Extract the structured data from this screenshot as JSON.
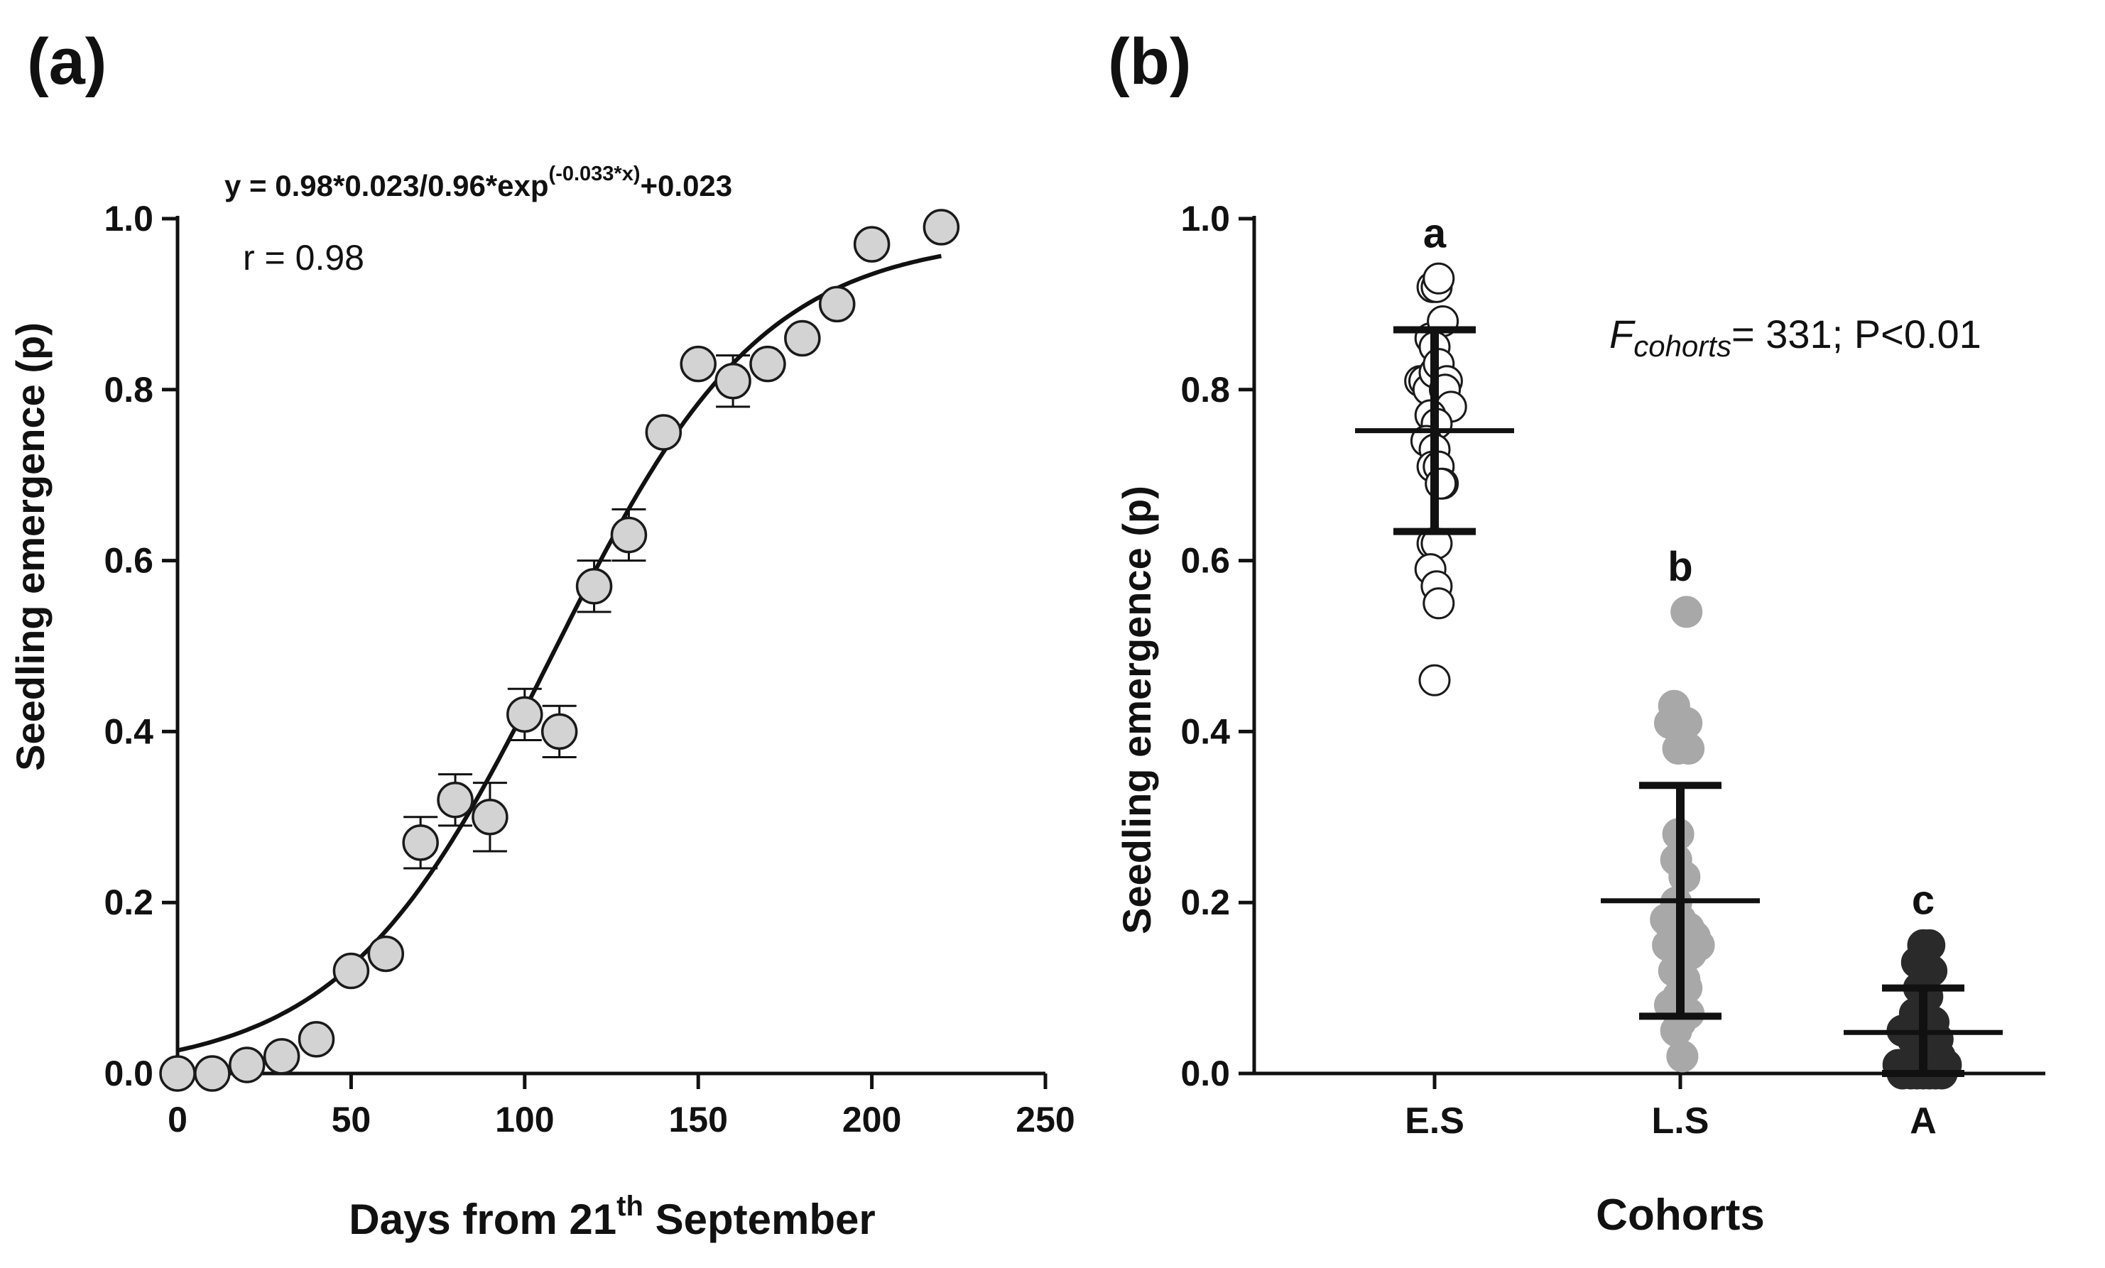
{
  "chart_data": [
    {
      "type": "scatter",
      "panel_label": "(a)",
      "title": "",
      "xlabel_main": "Days from 21",
      "xlabel_sup": "th",
      "xlabel_tail": " September",
      "ylabel": "Seedling emergence (p)",
      "xlim": [
        0,
        250
      ],
      "ylim": [
        0,
        1.0
      ],
      "xticks": [
        0,
        50,
        100,
        150,
        200,
        250
      ],
      "yticks": [
        0.0,
        0.2,
        0.4,
        0.6,
        0.8,
        1.0
      ],
      "xtick_labels": [
        "0",
        "50",
        "100",
        "150",
        "200",
        "250"
      ],
      "ytick_labels": [
        "0.0",
        "0.2",
        "0.4",
        "0.6",
        "0.8",
        "1.0"
      ],
      "equation_main": "y = 0.98*0.023/0.96*exp",
      "equation_sup": "(-0.033*x)",
      "equation_tail": "+0.023",
      "r_label": "r = 0.98",
      "grid": false,
      "points": [
        {
          "x": 0,
          "y": 0.0,
          "err": 0
        },
        {
          "x": 10,
          "y": 0.0,
          "err": 0
        },
        {
          "x": 20,
          "y": 0.01,
          "err": 0
        },
        {
          "x": 30,
          "y": 0.02,
          "err": 0
        },
        {
          "x": 40,
          "y": 0.04,
          "err": 0
        },
        {
          "x": 50,
          "y": 0.12,
          "err": 0
        },
        {
          "x": 60,
          "y": 0.14,
          "err": 0
        },
        {
          "x": 70,
          "y": 0.27,
          "err": 0.03
        },
        {
          "x": 80,
          "y": 0.32,
          "err": 0.03
        },
        {
          "x": 90,
          "y": 0.3,
          "err": 0.04
        },
        {
          "x": 100,
          "y": 0.42,
          "err": 0.03
        },
        {
          "x": 110,
          "y": 0.4,
          "err": 0.03
        },
        {
          "x": 120,
          "y": 0.57,
          "err": 0.03
        },
        {
          "x": 130,
          "y": 0.63,
          "err": 0.03
        },
        {
          "x": 140,
          "y": 0.75,
          "err": 0
        },
        {
          "x": 150,
          "y": 0.83,
          "err": 0
        },
        {
          "x": 160,
          "y": 0.81,
          "err": 0.03
        },
        {
          "x": 170,
          "y": 0.83,
          "err": 0
        },
        {
          "x": 180,
          "y": 0.86,
          "err": 0
        },
        {
          "x": 190,
          "y": 0.9,
          "err": 0
        },
        {
          "x": 200,
          "y": 0.97,
          "err": 0
        },
        {
          "x": 220,
          "y": 0.99,
          "err": 0
        }
      ],
      "fit": {
        "model": "logistic",
        "a": 0.98,
        "k": 0.033,
        "x0": 108,
        "c": 0.0,
        "x_range": [
          0,
          220
        ]
      },
      "marker_fill": "#d3d3d3",
      "marker_edge": "#1a1a1a"
    },
    {
      "type": "scatter",
      "panel_label": "(b)",
      "title": "",
      "xlabel": "Cohorts",
      "ylabel": "Seedling emergence (p)",
      "ylim": [
        0,
        1.0
      ],
      "yticks": [
        0.0,
        0.2,
        0.4,
        0.6,
        0.8,
        1.0
      ],
      "ytick_labels": [
        "0.0",
        "0.2",
        "0.4",
        "0.6",
        "0.8",
        "1.0"
      ],
      "categories": [
        "E.S",
        "L.S",
        "A"
      ],
      "f_symbol": "F",
      "f_sub": "cohorts",
      "f_tail": "= 331; P<0.01",
      "grid": false,
      "groups": [
        {
          "name": "E.S",
          "letter": "a",
          "mean": 0.752,
          "sd": 0.118,
          "fill": "#ffffff",
          "edge": "#1a1a1a",
          "points": [
            {
              "dx": -0.07,
              "y": 0.81
            },
            {
              "dx": -0.05,
              "y": 0.81
            },
            {
              "dx": -0.01,
              "y": 0.92
            },
            {
              "dx": 0.01,
              "y": 0.92
            },
            {
              "dx": 0.02,
              "y": 0.93
            },
            {
              "dx": -0.02,
              "y": 0.86
            },
            {
              "dx": 0.04,
              "y": 0.88
            },
            {
              "dx": 0.0,
              "y": 0.85
            },
            {
              "dx": -0.03,
              "y": 0.8
            },
            {
              "dx": 0.0,
              "y": 0.82
            },
            {
              "dx": 0.02,
              "y": 0.83
            },
            {
              "dx": 0.06,
              "y": 0.81
            },
            {
              "dx": 0.05,
              "y": 0.8
            },
            {
              "dx": 0.08,
              "y": 0.78
            },
            {
              "dx": -0.02,
              "y": 0.77
            },
            {
              "dx": 0.01,
              "y": 0.76
            },
            {
              "dx": -0.04,
              "y": 0.74
            },
            {
              "dx": 0.0,
              "y": 0.73
            },
            {
              "dx": -0.01,
              "y": 0.71
            },
            {
              "dx": 0.02,
              "y": 0.71
            },
            {
              "dx": 0.04,
              "y": 0.69
            },
            {
              "dx": 0.03,
              "y": 0.69
            },
            {
              "dx": -0.01,
              "y": 0.62
            },
            {
              "dx": 0.01,
              "y": 0.62
            },
            {
              "dx": -0.02,
              "y": 0.59
            },
            {
              "dx": 0.01,
              "y": 0.57
            },
            {
              "dx": 0.02,
              "y": 0.55
            },
            {
              "dx": 0.0,
              "y": 0.46
            }
          ]
        },
        {
          "name": "L.S",
          "letter": "b",
          "mean": 0.202,
          "sd": 0.135,
          "fill": "#a8a8a8",
          "edge": "#a8a8a8",
          "points": [
            {
              "dx": 0.03,
              "y": 0.54
            },
            {
              "dx": -0.03,
              "y": 0.43
            },
            {
              "dx": -0.05,
              "y": 0.41
            },
            {
              "dx": 0.03,
              "y": 0.41
            },
            {
              "dx": -0.01,
              "y": 0.38
            },
            {
              "dx": 0.04,
              "y": 0.38
            },
            {
              "dx": -0.01,
              "y": 0.28
            },
            {
              "dx": -0.02,
              "y": 0.25
            },
            {
              "dx": 0.02,
              "y": 0.23
            },
            {
              "dx": -0.02,
              "y": 0.2
            },
            {
              "dx": -0.07,
              "y": 0.18
            },
            {
              "dx": -0.04,
              "y": 0.17
            },
            {
              "dx": 0.0,
              "y": 0.18
            },
            {
              "dx": 0.04,
              "y": 0.17
            },
            {
              "dx": 0.07,
              "y": 0.16
            },
            {
              "dx": 0.09,
              "y": 0.15
            },
            {
              "dx": -0.06,
              "y": 0.15
            },
            {
              "dx": 0.01,
              "y": 0.15
            },
            {
              "dx": 0.05,
              "y": 0.14
            },
            {
              "dx": -0.03,
              "y": 0.12
            },
            {
              "dx": 0.02,
              "y": 0.11
            },
            {
              "dx": -0.01,
              "y": 0.09
            },
            {
              "dx": 0.03,
              "y": 0.1
            },
            {
              "dx": -0.05,
              "y": 0.08
            },
            {
              "dx": 0.0,
              "y": 0.06
            },
            {
              "dx": 0.04,
              "y": 0.07
            },
            {
              "dx": -0.02,
              "y": 0.05
            },
            {
              "dx": 0.01,
              "y": 0.02
            }
          ]
        },
        {
          "name": "A",
          "letter": "c",
          "mean": 0.048,
          "sd": 0.052,
          "fill": "#2a2a2a",
          "edge": "#2a2a2a",
          "points": [
            {
              "dx": 0.0,
              "y": 0.15
            },
            {
              "dx": 0.03,
              "y": 0.15
            },
            {
              "dx": -0.03,
              "y": 0.13
            },
            {
              "dx": 0.01,
              "y": 0.12
            },
            {
              "dx": 0.04,
              "y": 0.12
            },
            {
              "dx": -0.02,
              "y": 0.1
            },
            {
              "dx": 0.02,
              "y": 0.09
            },
            {
              "dx": -0.04,
              "y": 0.07
            },
            {
              "dx": 0.0,
              "y": 0.07
            },
            {
              "dx": 0.05,
              "y": 0.06
            },
            {
              "dx": -0.07,
              "y": 0.05
            },
            {
              "dx": -0.1,
              "y": 0.05
            },
            {
              "dx": -0.05,
              "y": 0.04
            },
            {
              "dx": 0.01,
              "y": 0.05
            },
            {
              "dx": 0.07,
              "y": 0.04
            },
            {
              "dx": -0.02,
              "y": 0.03
            },
            {
              "dx": 0.03,
              "y": 0.03
            },
            {
              "dx": 0.08,
              "y": 0.02
            },
            {
              "dx": -0.08,
              "y": 0.01
            },
            {
              "dx": -0.1,
              "y": 0.0
            },
            {
              "dx": -0.06,
              "y": 0.0
            },
            {
              "dx": -0.03,
              "y": 0.0
            },
            {
              "dx": 0.0,
              "y": 0.0
            },
            {
              "dx": 0.03,
              "y": 0.0
            },
            {
              "dx": 0.06,
              "y": 0.0
            },
            {
              "dx": 0.09,
              "y": 0.0
            },
            {
              "dx": 0.11,
              "y": 0.01
            },
            {
              "dx": -0.12,
              "y": 0.01
            }
          ]
        }
      ]
    }
  ]
}
